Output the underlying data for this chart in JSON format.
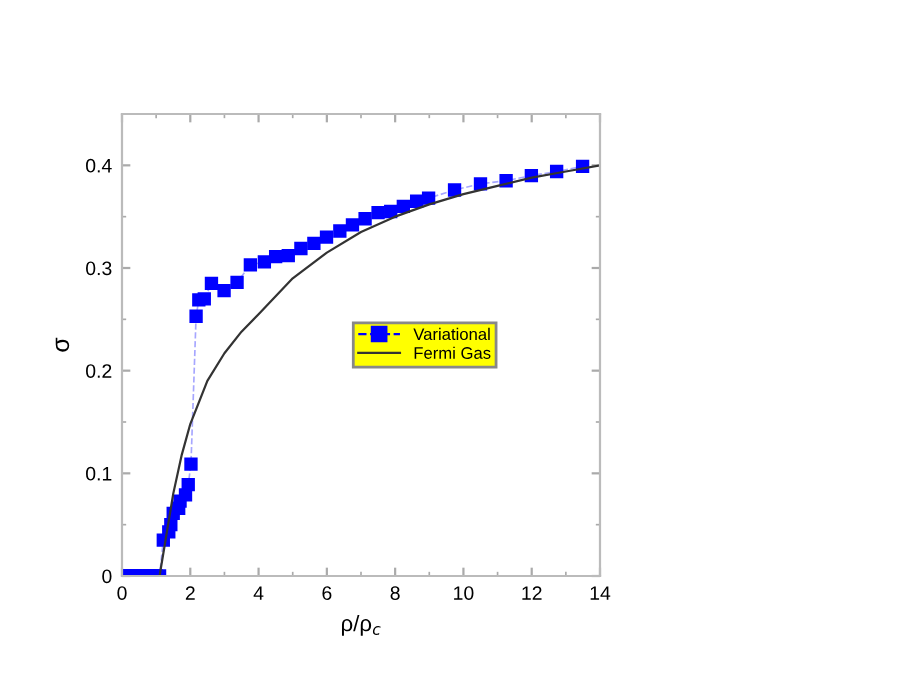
{
  "chart_data": {
    "type": "line",
    "xlabel": "ρ/ρ$_{c}$",
    "ylabel": "σ",
    "xlim": [
      0,
      14
    ],
    "ylim": [
      0,
      0.45
    ],
    "xticks": [
      0,
      2,
      4,
      6,
      8,
      10,
      12,
      14
    ],
    "yticks": [
      0,
      0.1,
      0.2,
      0.3,
      0.4
    ],
    "grid": false,
    "legend": "center right",
    "series": [
      {
        "name": "Variational",
        "color": "#0000ff",
        "marker": "square",
        "line_style": "dashed",
        "x": [
          0,
          0.1,
          0.2,
          0.3,
          0.4,
          0.5,
          0.6,
          0.7,
          0.8,
          0.9,
          1.0,
          1.1,
          1.21,
          1.37,
          1.43,
          1.5,
          1.66,
          1.7,
          1.86,
          1.94,
          2.02,
          2.17,
          2.25,
          2.41,
          2.62,
          2.99,
          3.37,
          3.76,
          4.17,
          4.5,
          4.87,
          5.24,
          5.62,
          5.99,
          6.38,
          6.75,
          7.12,
          7.5,
          7.87,
          8.24,
          8.63,
          8.98,
          9.74,
          10.5,
          11.25,
          11.99,
          12.73,
          13.49
        ],
        "values": [
          0,
          0,
          0,
          0,
          0,
          0,
          0,
          0,
          0,
          0,
          0,
          0,
          0.035,
          0.043,
          0.05,
          0.061,
          0.066,
          0.073,
          0.079,
          0.089,
          0.109,
          0.253,
          0.269,
          0.27,
          0.285,
          0.278,
          0.286,
          0.303,
          0.306,
          0.311,
          0.312,
          0.319,
          0.324,
          0.33,
          0.336,
          0.342,
          0.348,
          0.354,
          0.355,
          0.36,
          0.365,
          0.368,
          0.376,
          0.382,
          0.385,
          0.39,
          0.394,
          0.399
        ]
      },
      {
        "name": "Fermi Gas",
        "color": "#333333",
        "marker": "none",
        "line_style": "solid",
        "x": [
          1.1,
          1.25,
          1.5,
          1.75,
          2,
          2.5,
          3,
          3.5,
          4,
          5,
          6,
          7,
          8,
          9,
          10,
          11,
          12,
          13,
          14
        ],
        "values": [
          0,
          0.03,
          0.08,
          0.118,
          0.148,
          0.19,
          0.217,
          0.238,
          0.255,
          0.29,
          0.315,
          0.335,
          0.35,
          0.362,
          0.372,
          0.38,
          0.388,
          0.394,
          0.4
        ]
      }
    ]
  }
}
